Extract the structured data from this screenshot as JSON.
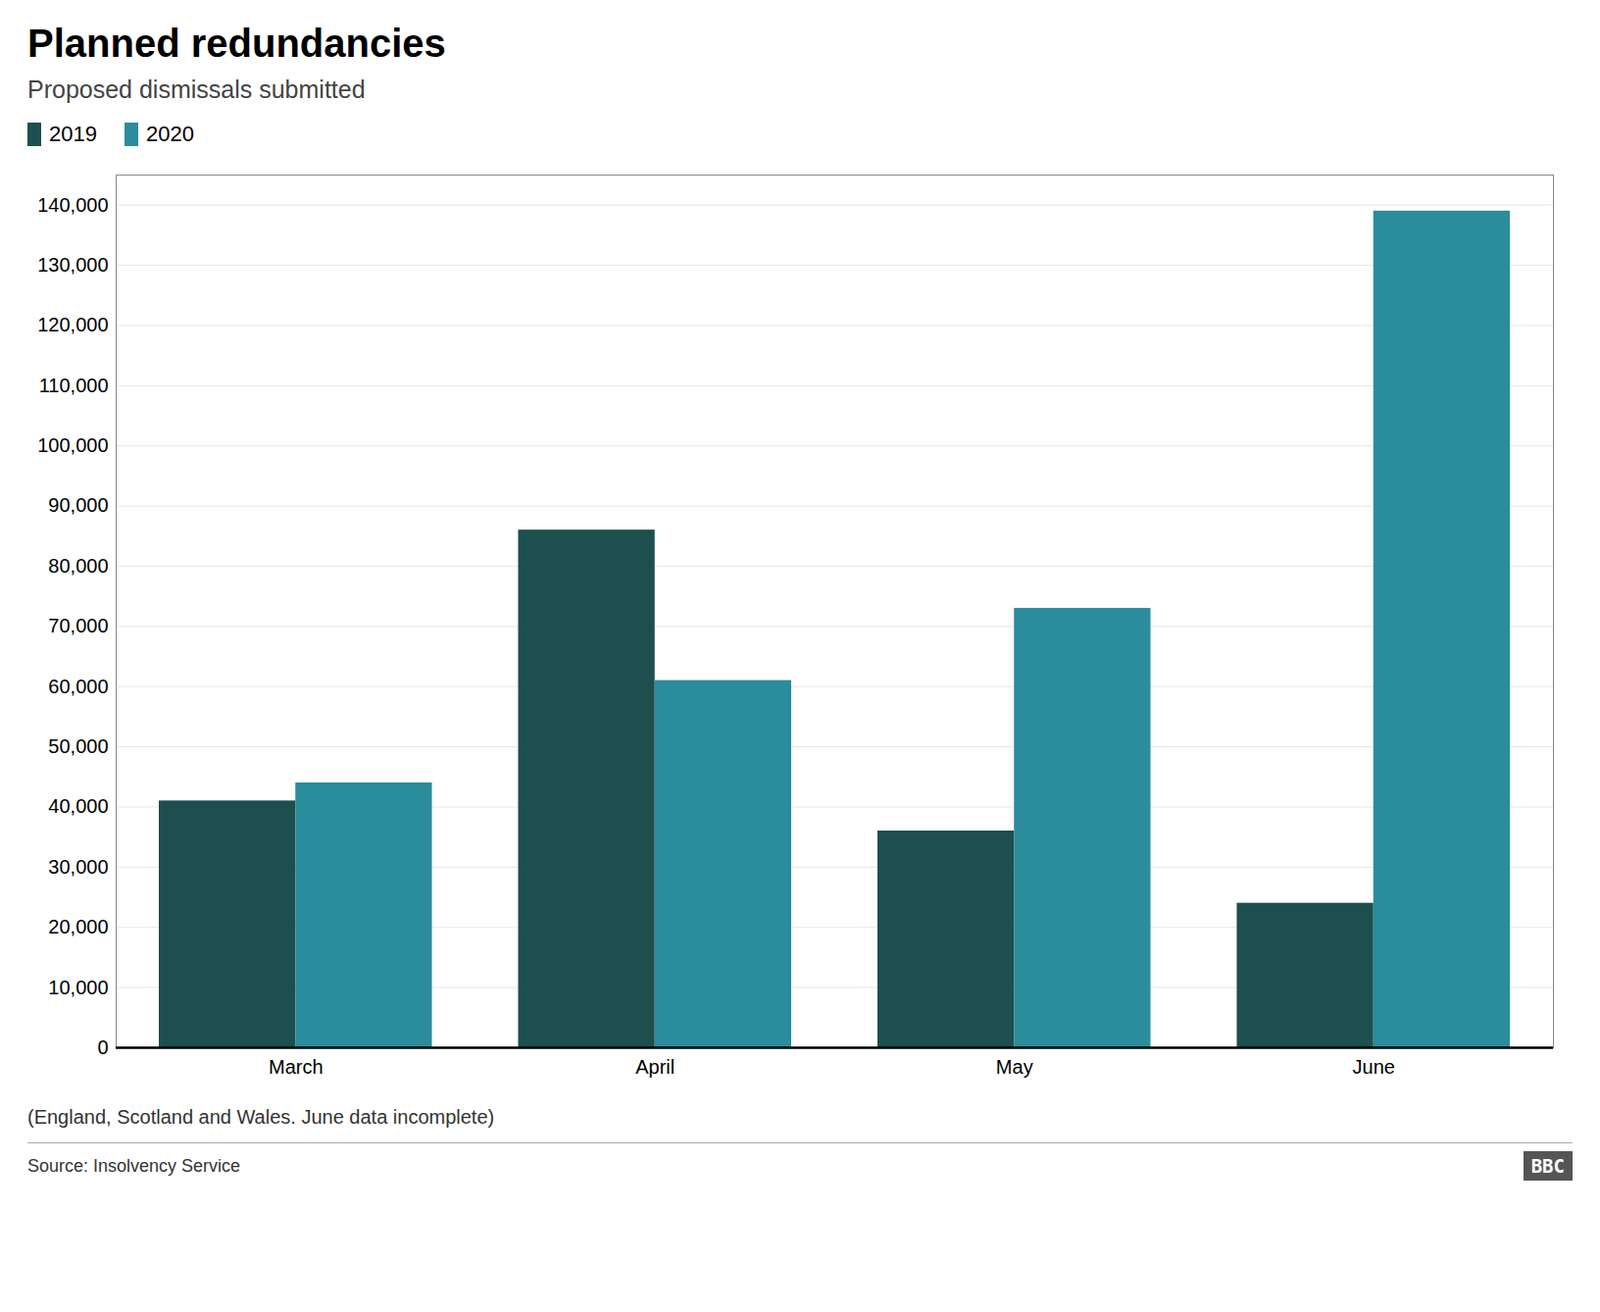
{
  "chart_data": {
    "type": "bar",
    "title": "Planned redundancies",
    "subtitle": "Proposed dismissals submitted",
    "categories": [
      "March",
      "April",
      "May",
      "June"
    ],
    "series": [
      {
        "name": "2019",
        "color": "#1d4f4f",
        "values": [
          41000,
          86000,
          36000,
          24000
        ]
      },
      {
        "name": "2020",
        "color": "#2b8c9b",
        "values": [
          44000,
          61000,
          73000,
          139000
        ]
      }
    ],
    "ylim": [
      0,
      145000
    ],
    "yticks": [
      0,
      {
        "value": 10000,
        "label": "10,000"
      },
      {
        "value": 20000,
        "label": "20,000"
      },
      {
        "value": 30000,
        "label": "30,000"
      },
      {
        "value": 40000,
        "label": "40,000"
      },
      {
        "value": 50000,
        "label": "50,000"
      },
      {
        "value": 60000,
        "label": "60,000"
      },
      {
        "value": 70000,
        "label": "70,000"
      },
      {
        "value": 80000,
        "label": "80,000"
      },
      {
        "value": 90000,
        "label": "90,000"
      },
      {
        "value": 100000,
        "label": "100,000"
      },
      {
        "value": 110000,
        "label": "110,000"
      },
      {
        "value": 120000,
        "label": "120,000"
      },
      {
        "value": 130000,
        "label": "130,000"
      },
      {
        "value": 140000,
        "label": "140,000"
      }
    ],
    "grid": true,
    "legend": "top-left",
    "footnote": "(England, Scotland and Wales. June data incomplete)",
    "source": "Source: Insolvency Service",
    "logo": "BBC"
  }
}
